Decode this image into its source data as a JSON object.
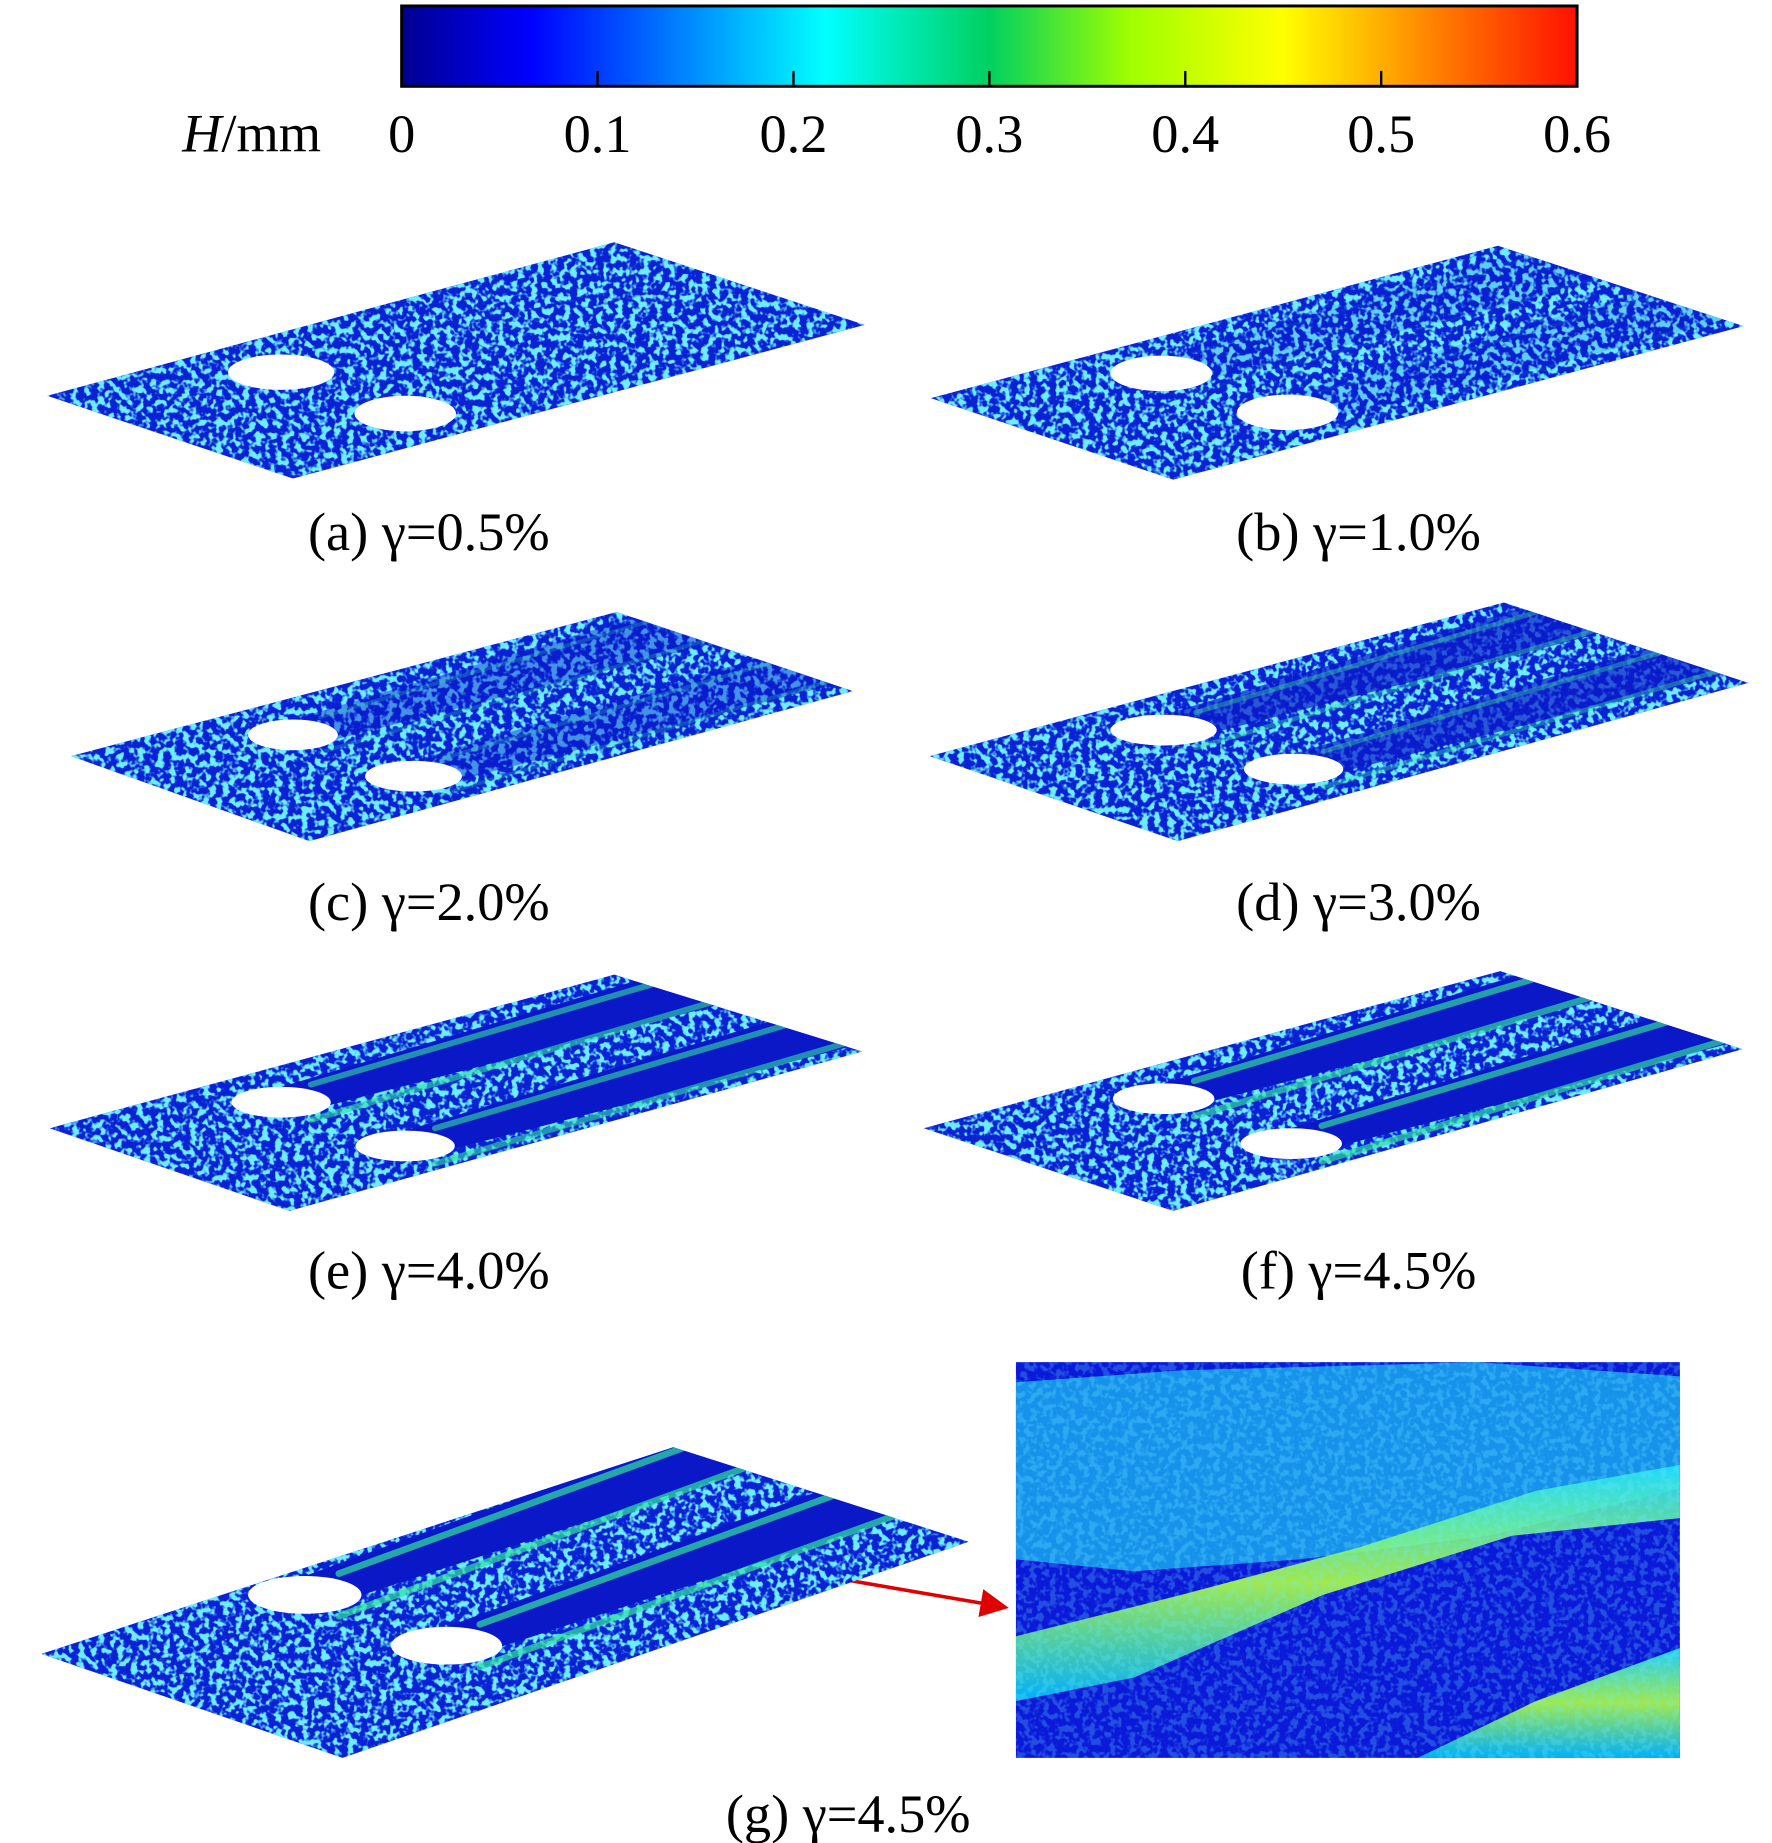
{
  "colorbar": {
    "label_symbol": "H",
    "label_unit": "/mm",
    "lim": [
      0,
      0.6
    ],
    "ticks": [
      0,
      0.1,
      0.2,
      0.3,
      0.4,
      0.5,
      0.6
    ]
  },
  "panels": [
    {
      "label": "(a) γ=0.5%"
    },
    {
      "label": "(b) γ=1.0%"
    },
    {
      "label": "(c) γ=2.0%"
    },
    {
      "label": "(d) γ=3.0%"
    },
    {
      "label": "(e) γ=4.0%"
    },
    {
      "label": "(f) γ=4.5%"
    },
    {
      "label": "(g) γ=4.5%"
    }
  ]
}
